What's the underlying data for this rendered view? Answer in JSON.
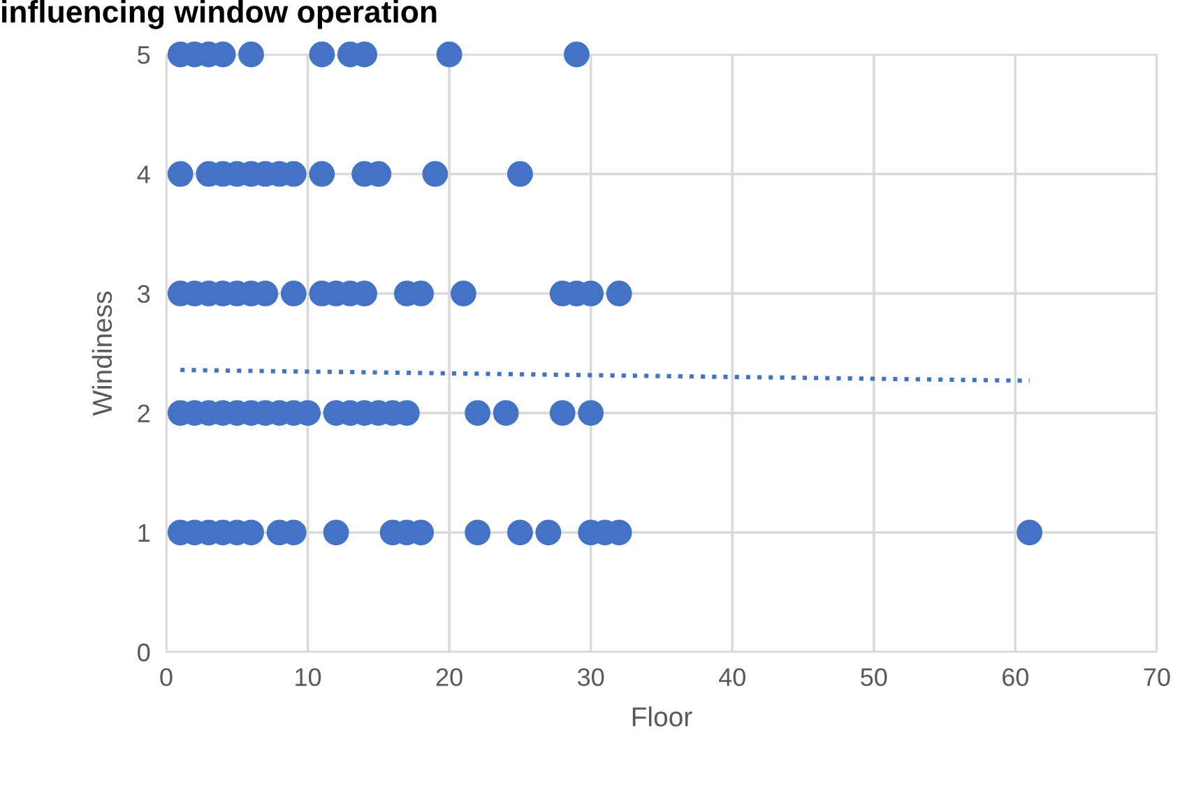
{
  "chart_data": {
    "type": "scatter",
    "title": "influencing window operation",
    "xlabel": "Floor",
    "ylabel": "Windiness",
    "xlim": [
      0,
      70
    ],
    "ylim": [
      0,
      5
    ],
    "xticks": [
      0,
      10,
      20,
      30,
      40,
      50,
      60,
      70
    ],
    "yticks": [
      0,
      1,
      2,
      3,
      4,
      5
    ],
    "grid": true,
    "legend": false,
    "marker": "circle",
    "series": [
      {
        "color": "#4472c4",
        "x": [
          1,
          2,
          3,
          4,
          6,
          11,
          13,
          14,
          20,
          29,
          1,
          3,
          4,
          5,
          6,
          7,
          8,
          9,
          11,
          14,
          15,
          19,
          25,
          1,
          2,
          3,
          4,
          5,
          6,
          7,
          9,
          11,
          12,
          13,
          14,
          17,
          18,
          21,
          28,
          29,
          30,
          32,
          1,
          2,
          3,
          4,
          5,
          6,
          7,
          8,
          9,
          10,
          12,
          13,
          14,
          15,
          16,
          17,
          22,
          24,
          28,
          30,
          1,
          2,
          3,
          4,
          5,
          6,
          8,
          9,
          12,
          16,
          17,
          18,
          22,
          25,
          27,
          30,
          31,
          32,
          61
        ],
        "values": [
          5,
          5,
          5,
          5,
          5,
          5,
          5,
          5,
          5,
          5,
          4,
          4,
          4,
          4,
          4,
          4,
          4,
          4,
          4,
          4,
          4,
          4,
          4,
          3,
          3,
          3,
          3,
          3,
          3,
          3,
          3,
          3,
          3,
          3,
          3,
          3,
          3,
          3,
          3,
          3,
          3,
          3,
          2,
          2,
          2,
          2,
          2,
          2,
          2,
          2,
          2,
          2,
          2,
          2,
          2,
          2,
          2,
          2,
          2,
          2,
          2,
          2,
          1,
          1,
          1,
          1,
          1,
          1,
          1,
          1,
          1,
          1,
          1,
          1,
          1,
          1,
          1,
          1,
          1,
          1,
          1
        ]
      },
      {
        "type": "line",
        "color": "#4472c4",
        "line_style": "dotted",
        "marker": "none",
        "x": [
          1,
          61
        ],
        "values": [
          2.36,
          2.27
        ]
      }
    ]
  }
}
